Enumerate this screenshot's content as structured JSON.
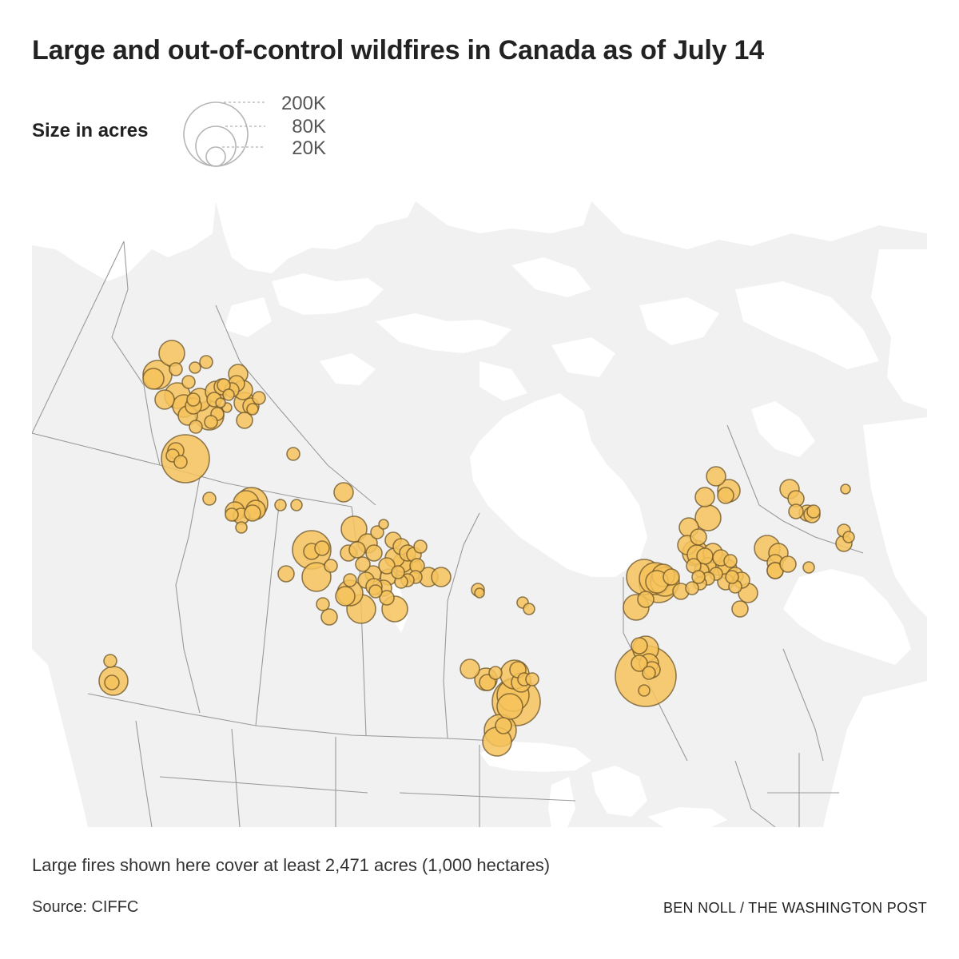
{
  "title": "Large and out-of-control wildfires in Canada as of July 14",
  "legend": {
    "label": "Size in acres",
    "sizes": [
      {
        "value": 200000,
        "label": "200K"
      },
      {
        "value": 80000,
        "label": "80K"
      },
      {
        "value": 20000,
        "label": "20K"
      }
    ]
  },
  "note": "Large fires shown here cover at least 2,471 acres (1,000 hectares)",
  "source": "Source: CIFFC",
  "credit": "BEN NOLL / THE WASHINGTON POST",
  "colors": {
    "fire_fill": "#f6c35c",
    "fire_stroke": "#6b5327",
    "land": "#f1f1f1",
    "water": "#ffffff",
    "border": "#9a9a9a"
  }
}
